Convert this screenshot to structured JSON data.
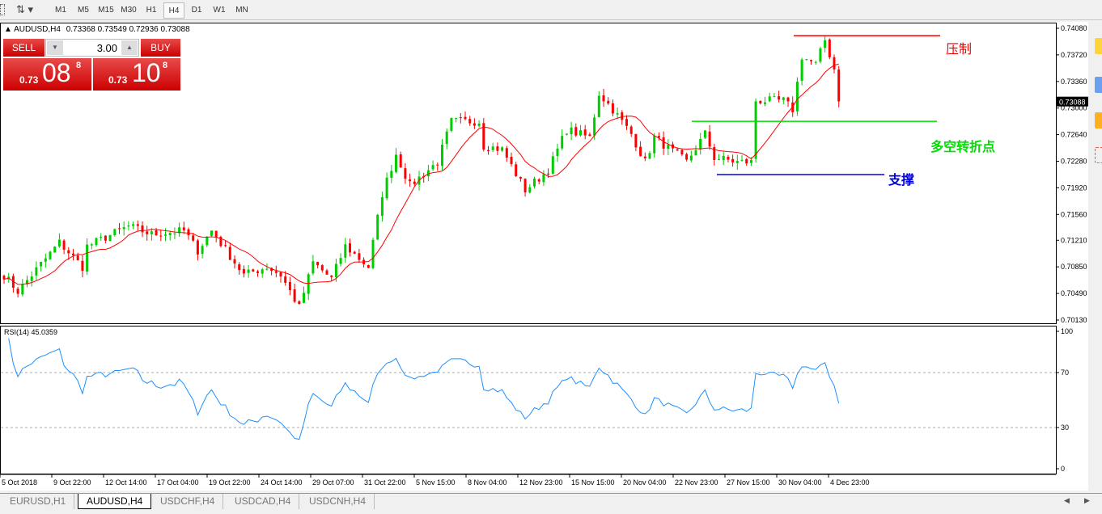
{
  "toolbar": {
    "timeframes": [
      "M1",
      "M5",
      "M15",
      "M30",
      "H1",
      "H4",
      "D1",
      "W1",
      "MN"
    ],
    "active": "H4"
  },
  "chart_header": {
    "symbol": "AUDUSD,H4",
    "ohlc": "0.73368 0.73549 0.72936 0.73088"
  },
  "trade_panel": {
    "sell_label": "SELL",
    "buy_label": "BUY",
    "volume": "3.00",
    "sell_prefix": "0.73",
    "sell_big": "08",
    "sell_sup": "8",
    "buy_prefix": "0.73",
    "buy_big": "10",
    "buy_sup": "8"
  },
  "price_axis": {
    "ticks": [
      "0.74080",
      "0.73720",
      "0.73360",
      "0.73000",
      "0.72640",
      "0.72280",
      "0.71920",
      "0.71560",
      "0.71210",
      "0.70850",
      "0.70490",
      "0.70130"
    ],
    "current": "0.73088"
  },
  "time_axis": [
    "5 Oct 2018",
    "9 Oct 22:00",
    "12 Oct 14:00",
    "17 Oct 04:00",
    "19 Oct 22:00",
    "24 Oct 14:00",
    "29 Oct 07:00",
    "31 Oct 22:00",
    "5 Nov 15:00",
    "8 Nov 04:00",
    "12 Nov 23:00",
    "15 Nov 15:00",
    "20 Nov 04:00",
    "22 Nov 23:00",
    "27 Nov 15:00",
    "30 Nov 04:00",
    "4 Dec 23:00"
  ],
  "annotations": {
    "resistance": {
      "label": "压制",
      "price": 0.7398,
      "color": "#ff0000"
    },
    "pivot": {
      "label": "多空转折点",
      "price": 0.7282,
      "color": "#00dd00"
    },
    "support": {
      "label": "支撑",
      "price": 0.721,
      "color": "#0000dd"
    }
  },
  "rsi": {
    "label": "RSI(14) 45.0359",
    "levels": [
      "100",
      "70",
      "30",
      "0"
    ]
  },
  "colors": {
    "bull": "#00cc00",
    "bear": "#ff0000",
    "ma": "#ff0000",
    "rsi": "#1e90ff"
  },
  "chart_data": {
    "type": "candlestick",
    "symbol": "AUDUSD",
    "timeframe": "H4",
    "ylim": [
      0.7013,
      0.7408
    ],
    "close_keypoints_bar_price": [
      [
        0,
        0.7074
      ],
      [
        3,
        0.7052
      ],
      [
        6,
        0.7074
      ],
      [
        12,
        0.7118
      ],
      [
        17,
        0.7085
      ],
      [
        18,
        0.7113
      ],
      [
        27,
        0.714
      ],
      [
        32,
        0.7129
      ],
      [
        39,
        0.7134
      ],
      [
        42,
        0.7107
      ],
      [
        45,
        0.7134
      ],
      [
        52,
        0.7074
      ],
      [
        57,
        0.7085
      ],
      [
        60,
        0.7074
      ],
      [
        64,
        0.703
      ],
      [
        67,
        0.7091
      ],
      [
        71,
        0.7069
      ],
      [
        74,
        0.7113
      ],
      [
        79,
        0.7085
      ],
      [
        82,
        0.7184
      ],
      [
        85,
        0.7238
      ],
      [
        88,
        0.7195
      ],
      [
        94,
        0.7227
      ],
      [
        97,
        0.7282
      ],
      [
        103,
        0.7282
      ],
      [
        104,
        0.7249
      ],
      [
        108,
        0.7244
      ],
      [
        113,
        0.7189
      ],
      [
        118,
        0.7216
      ],
      [
        122,
        0.7271
      ],
      [
        127,
        0.726
      ],
      [
        129,
        0.732
      ],
      [
        132,
        0.7298
      ],
      [
        136,
        0.7265
      ],
      [
        139,
        0.7227
      ],
      [
        141,
        0.726
      ],
      [
        148,
        0.7227
      ],
      [
        152,
        0.7265
      ],
      [
        154,
        0.7233
      ],
      [
        159,
        0.7227
      ],
      [
        162,
        0.7227
      ],
      [
        163,
        0.731
      ],
      [
        169,
        0.731
      ],
      [
        171,
        0.7298
      ],
      [
        173,
        0.737
      ],
      [
        176,
        0.7359
      ],
      [
        178,
        0.7392
      ],
      [
        180,
        0.7353
      ],
      [
        181,
        0.7309
      ]
    ]
  },
  "tabs": [
    "EURUSD,H1",
    "AUDUSD,H4",
    "USDCHF,H4",
    "USDCAD,H4",
    "USDCNH,H4"
  ],
  "active_tab": "AUDUSD,H4"
}
